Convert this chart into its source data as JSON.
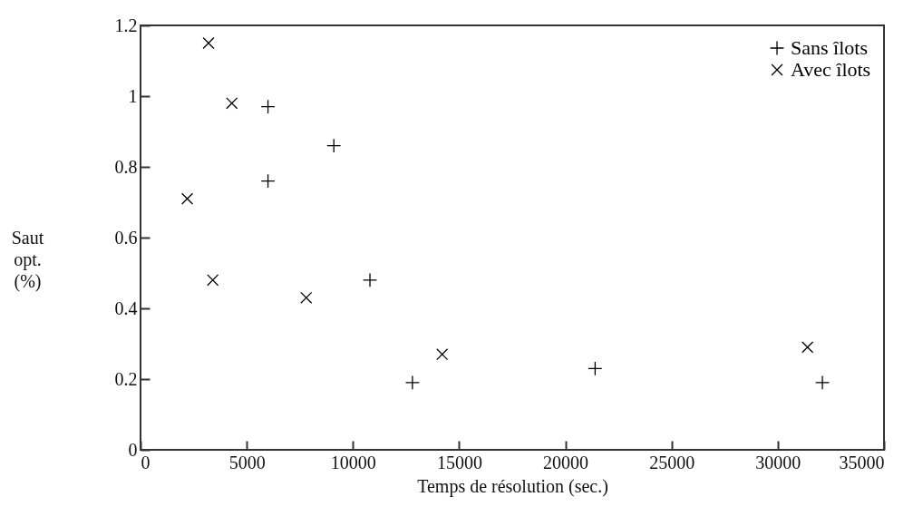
{
  "chart_data": {
    "type": "scatter",
    "xlabel": "Temps de résolution (sec.)",
    "ylabel": "Saut opt. (%)",
    "xlim": [
      0,
      35000
    ],
    "xticks": [
      0,
      5000,
      10000,
      15000,
      20000,
      25000,
      30000,
      35000
    ],
    "ylim": [
      0,
      1.2
    ],
    "yticks": [
      0,
      0.2,
      0.4,
      0.6,
      0.8,
      1,
      1.2
    ],
    "legend": "top right",
    "grid": false,
    "series": [
      {
        "name": "Sans îlots",
        "color": "#000000",
        "marker": "plus",
        "x": [
          6000,
          6000,
          9100,
          10800,
          12800,
          21400,
          32100
        ],
        "values": [
          0.97,
          0.76,
          0.86,
          0.48,
          0.19,
          0.23,
          0.19
        ]
      },
      {
        "name": "Avec îlots",
        "color": "#000000",
        "marker": "cross",
        "x": [
          2200,
          3200,
          4300,
          3400,
          7800,
          14200,
          31400
        ],
        "values": [
          0.71,
          1.15,
          0.98,
          0.48,
          0.43,
          0.27,
          0.29
        ]
      }
    ]
  }
}
